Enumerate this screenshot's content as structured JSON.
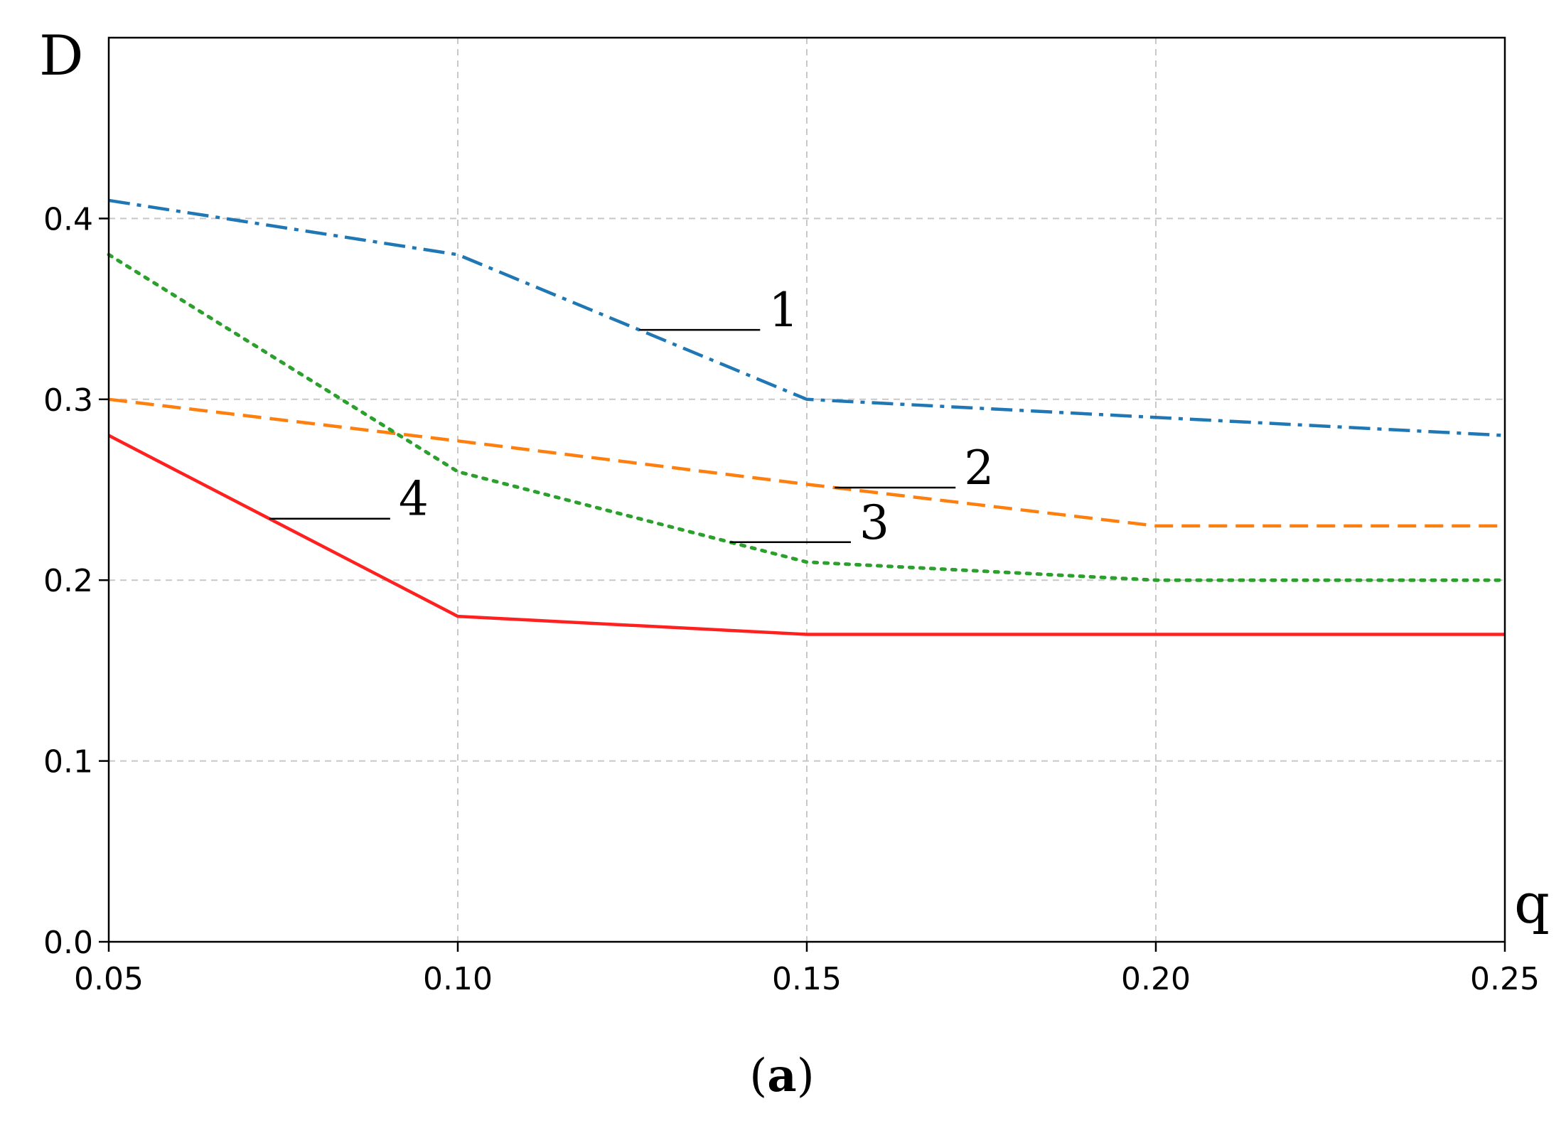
{
  "chart_data": {
    "type": "line",
    "title": "",
    "xlabel": "q",
    "ylabel": "D",
    "caption": {
      "open": "(",
      "letter": "a",
      "close": ")"
    },
    "xlim": [
      0.05,
      0.25
    ],
    "ylim": [
      0.0,
      0.5
    ],
    "xticks": [
      0.05,
      0.1,
      0.15,
      0.2,
      0.25
    ],
    "xtick_labels": [
      "0.05",
      "0.10",
      "0.15",
      "0.20",
      "0.25"
    ],
    "yticks": [
      0.0,
      0.1,
      0.2,
      0.3,
      0.4
    ],
    "ytick_labels": [
      "0.0",
      "0.1",
      "0.2",
      "0.3",
      "0.4"
    ],
    "grid": true,
    "x": [
      0.05,
      0.1,
      0.15,
      0.2,
      0.25
    ],
    "series": [
      {
        "label": "1",
        "values": [
          0.41,
          0.38,
          0.3,
          0.29,
          0.28
        ],
        "color": "#1f77b4",
        "dash": "dashdot"
      },
      {
        "label": "2",
        "values": [
          0.3,
          0.277,
          0.253,
          0.23,
          0.23
        ],
        "color": "#ff7f0e",
        "dash": "dashed"
      },
      {
        "label": "3",
        "values": [
          0.38,
          0.26,
          0.21,
          0.2,
          0.2
        ],
        "color": "#2ca02c",
        "dash": "dotted"
      },
      {
        "label": "4",
        "values": [
          0.28,
          0.18,
          0.17,
          0.17,
          0.17
        ],
        "color": "#ff2020",
        "dash": "solid"
      }
    ],
    "annotations": [
      {
        "label": "1",
        "series": 0,
        "x": 0.126
      },
      {
        "label": "2",
        "series": 1,
        "x": 0.154
      },
      {
        "label": "3",
        "series": 2,
        "x": 0.139
      },
      {
        "label": "4",
        "series": 3,
        "x": 0.073
      }
    ]
  }
}
